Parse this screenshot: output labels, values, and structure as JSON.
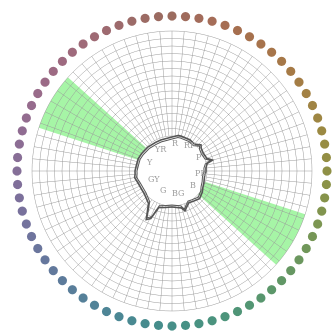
{
  "hue_labels": [
    "RP",
    "P",
    "PB",
    "B",
    "BG",
    "G",
    "GY",
    "Y",
    "YR",
    "R"
  ],
  "highlight_color": "#a6f5a6",
  "grid_color": "#9a9a9a",
  "contour_color": "#555555",
  "ring_colors": [
    "#9b6b5e",
    "#a56c5a",
    "#a66f4f",
    "#a7744b",
    "#a67a46",
    "#a28244",
    "#9b8942",
    "#928f44",
    "#87934a",
    "#7a9653",
    "#6c975d",
    "#5f9767",
    "#549672",
    "#4c947c",
    "#479184",
    "#468d8c",
    "#4a8893",
    "#528298",
    "#5c7c9b",
    "#67779d",
    "#72739d",
    "#7d709b",
    "#876e97",
    "#906c92",
    "#986b8b",
    "#9d6a83",
    "#9f6a7a",
    "#9e6a70",
    "#9c6b66"
  ]
}
